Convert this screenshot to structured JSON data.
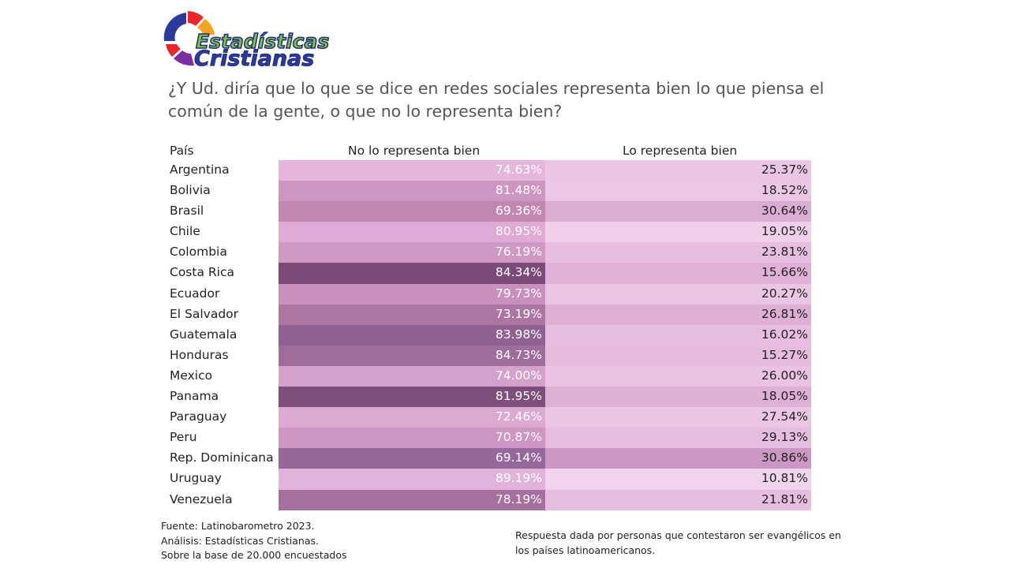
{
  "logo": {
    "line1": "Estadísticas",
    "line2": "Cristianas"
  },
  "question": "¿Y Ud. diría que lo que se dice en redes sociales representa bien lo que piensa el común de la gente, o que no lo representa bien?",
  "table": {
    "headers": {
      "country": "País",
      "col1": "No lo representa bien",
      "col2": "Lo representa bien"
    },
    "rows": [
      {
        "country": "Argentina",
        "col1": "74.63%",
        "col2": "25.37%"
      },
      {
        "country": "Bolivia",
        "col1": "81.48%",
        "col2": "18.52%"
      },
      {
        "country": "Brasil",
        "col1": "69.36%",
        "col2": "30.64%"
      },
      {
        "country": "Chile",
        "col1": "80.95%",
        "col2": "19.05%"
      },
      {
        "country": "Colombia",
        "col1": "76.19%",
        "col2": "23.81%"
      },
      {
        "country": "Costa Rica",
        "col1": "84.34%",
        "col2": "15.66%"
      },
      {
        "country": "Ecuador",
        "col1": "79.73%",
        "col2": "20.27%"
      },
      {
        "country": "El Salvador",
        "col1": "73.19%",
        "col2": "26.81%"
      },
      {
        "country": "Guatemala",
        "col1": "83.98%",
        "col2": "16.02%"
      },
      {
        "country": "Honduras",
        "col1": "84.73%",
        "col2": "15.27%"
      },
      {
        "country": "Mexico",
        "col1": "74.00%",
        "col2": "26.00%"
      },
      {
        "country": "Panama",
        "col1": "81.95%",
        "col2": "18.05%"
      },
      {
        "country": "Paraguay",
        "col1": "72.46%",
        "col2": "27.54%"
      },
      {
        "country": "Peru",
        "col1": "70.87%",
        "col2": "29.13%"
      },
      {
        "country": "Rep. Dominicana",
        "col1": "69.14%",
        "col2": "30.86%"
      },
      {
        "country": "Uruguay",
        "col1": "89.19%",
        "col2": "10.81%"
      },
      {
        "country": "Venezuela",
        "col1": "78.19%",
        "col2": "21.81%"
      }
    ],
    "cell_colors": {
      "col1": [
        "#e6b5dc",
        "#cd96c0",
        "#c287af",
        "#dfaad4",
        "#cf99c3",
        "#7c4a78",
        "#c990bd",
        "#ad75a2",
        "#906293",
        "#a06c9c",
        "#d4a1cb",
        "#7e4f7c",
        "#dcaad1",
        "#ce97c2",
        "#95679a",
        "#e2b3da",
        "#a56f9e"
      ],
      "col2": [
        "#ebc5e4",
        "#ecc7e5",
        "#dcadd3",
        "#efcfea",
        "#e7bde0",
        "#e0b0d7",
        "#ebc5e4",
        "#dfafd6",
        "#e7bde0",
        "#e6bbde",
        "#eac3e3",
        "#dfb0d6",
        "#ebc5e4",
        "#e6bcdf",
        "#cc97c2",
        "#f0d3ed",
        "#e7bde0"
      ]
    }
  },
  "chart_data": {
    "type": "table",
    "categories": [
      "Argentina",
      "Bolivia",
      "Brasil",
      "Chile",
      "Colombia",
      "Costa Rica",
      "Ecuador",
      "El Salvador",
      "Guatemala",
      "Honduras",
      "Mexico",
      "Panama",
      "Paraguay",
      "Peru",
      "Rep. Dominicana",
      "Uruguay",
      "Venezuela"
    ],
    "series": [
      {
        "name": "No lo representa bien",
        "values": [
          74.63,
          81.48,
          69.36,
          80.95,
          76.19,
          84.34,
          79.73,
          73.19,
          83.98,
          84.73,
          74.0,
          81.95,
          72.46,
          70.87,
          69.14,
          89.19,
          78.19
        ]
      },
      {
        "name": "Lo representa bien",
        "values": [
          25.37,
          18.52,
          30.64,
          19.05,
          23.81,
          15.66,
          20.27,
          26.81,
          16.02,
          15.27,
          26.0,
          18.05,
          27.54,
          29.13,
          30.86,
          10.81,
          21.81
        ]
      }
    ],
    "title": "¿Y Ud. diría que lo que se dice en redes sociales representa bien lo que piensa el común de la gente, o que no lo representa bien?"
  },
  "footer": {
    "source": "Fuente: Latinobarometro 2023.",
    "analysis": "Análisis: Estadísticas Cristianas.",
    "base": "Sobre la base de 20.000 encuestados",
    "note": "Respuesta dada por personas que contestaron ser evangélicos en los países latinoamericanos."
  }
}
